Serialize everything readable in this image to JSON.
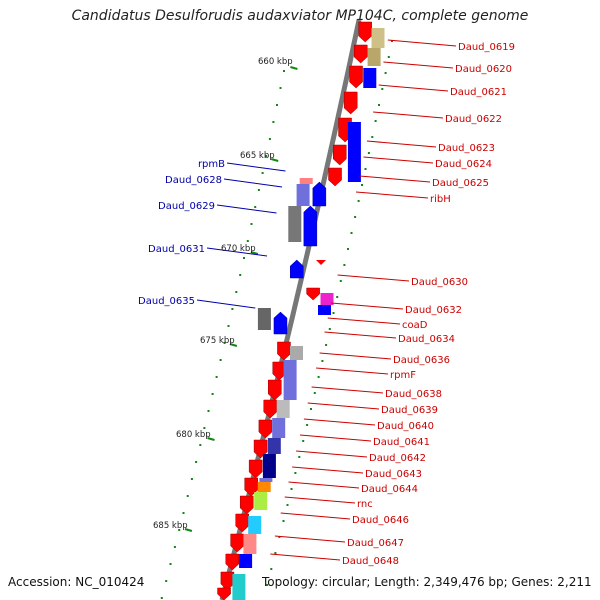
{
  "title": "Candidatus Desulforudis audaxviator MP104C, complete genome",
  "accession": "Accession: NC_010424",
  "stats": "Topology: circular; Length: 2,349,476 bp; Genes: 2,211",
  "colors": {
    "forward": "#0000ff",
    "reverse": "#ff0000",
    "right_label": "#cc0000",
    "left_label": "#0000aa",
    "tick": "#118811",
    "backbone": "#777777"
  },
  "kbp_ticks": [
    "660 kbp",
    "665 kbp",
    "670 kbp",
    "675 kbp",
    "680 kbp",
    "685 kbp"
  ],
  "right_labels": [
    "Daud_0619",
    "Daud_0620",
    "Daud_0621",
    "Daud_0622",
    "Daud_0623",
    "Daud_0624",
    "Daud_0625",
    "ribH",
    "Daud_0630",
    "Daud_0632",
    "coaD",
    "Daud_0634",
    "Daud_0636",
    "rpmF",
    "Daud_0638",
    "Daud_0639",
    "Daud_0640",
    "Daud_0641",
    "Daud_0642",
    "Daud_0643",
    "Daud_0644",
    "rnc",
    "Daud_0646",
    "Daud_0647",
    "Daud_0648"
  ],
  "left_labels": [
    "rpmB",
    "Daud_0628",
    "Daud_0629",
    "Daud_0631",
    "Daud_0635"
  ]
}
